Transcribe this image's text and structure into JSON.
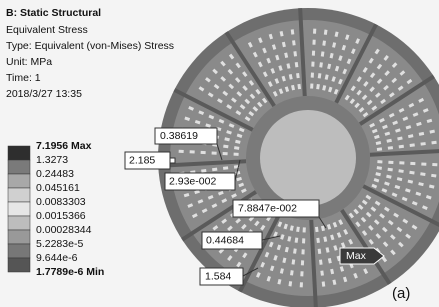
{
  "header": {
    "title": "B: Static Structural",
    "lines": [
      "Equivalent Stress",
      "Type: Equivalent (von-Mises) Stress",
      "Unit: MPa",
      "Time: 1",
      "2018/3/27 13:35"
    ]
  },
  "legend": {
    "labels": [
      "7.1956 Max",
      "1.3273",
      "0.24483",
      "0.045161",
      "0.0083303",
      "0.0015366",
      "0.00028344",
      "5.2283e-5",
      "9.644e-6",
      "1.7789e-6 Min"
    ]
  },
  "probes": [
    "0.38619",
    "2.185",
    "2.93e-002",
    "7.8847e-002",
    "0.44684",
    "1.584"
  ],
  "max_label": "Max",
  "caption": "(a)"
}
